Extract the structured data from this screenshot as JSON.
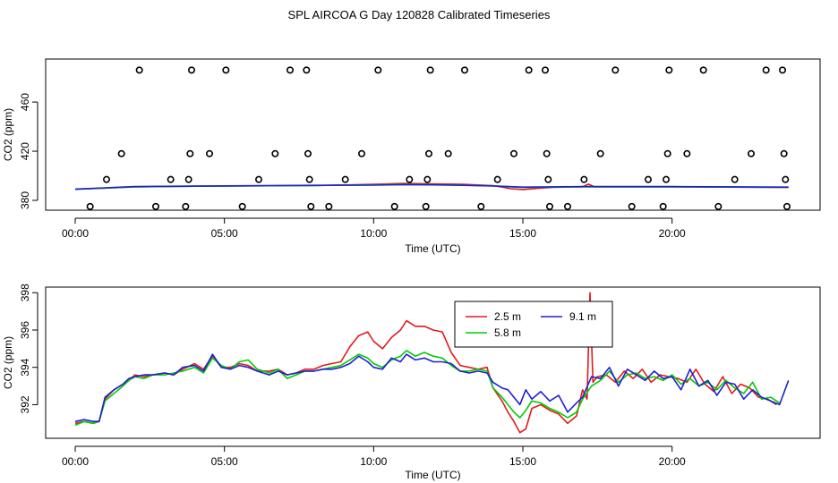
{
  "page_title": "SPL AIRCOA G  Day 120828  Calibrated Timeseries",
  "chart_data": [
    {
      "type": "scatter",
      "title": "SPL AIRCOA G  Day 120828  Calibrated Timeseries",
      "xlabel": "Time (UTC)",
      "ylabel": "CO2 (ppm)",
      "xlim": [
        -0.0,
        24.0
      ],
      "ylim": [
        372,
        495
      ],
      "xticks": [
        0,
        5,
        10,
        15,
        20
      ],
      "xtick_labels": [
        "00:00",
        "05:00",
        "10:00",
        "15:00",
        "20:00"
      ],
      "yticks": [
        380,
        420,
        460
      ],
      "ytick_labels": [
        "380",
        "420",
        "460"
      ],
      "calibration_points": [
        {
          "x": 0.5,
          "y": 375
        },
        {
          "x": 1.05,
          "y": 397
        },
        {
          "x": 1.55,
          "y": 418
        },
        {
          "x": 2.15,
          "y": 486
        },
        {
          "x": 2.7,
          "y": 375
        },
        {
          "x": 3.2,
          "y": 397
        },
        {
          "x": 3.7,
          "y": 375
        },
        {
          "x": 3.8,
          "y": 397
        },
        {
          "x": 3.85,
          "y": 418
        },
        {
          "x": 3.9,
          "y": 486
        },
        {
          "x": 4.5,
          "y": 418
        },
        {
          "x": 5.05,
          "y": 486
        },
        {
          "x": 5.6,
          "y": 375
        },
        {
          "x": 6.15,
          "y": 397
        },
        {
          "x": 6.7,
          "y": 418
        },
        {
          "x": 7.2,
          "y": 486
        },
        {
          "x": 7.75,
          "y": 486
        },
        {
          "x": 7.8,
          "y": 418
        },
        {
          "x": 7.85,
          "y": 397
        },
        {
          "x": 7.9,
          "y": 375
        },
        {
          "x": 8.5,
          "y": 375
        },
        {
          "x": 9.05,
          "y": 397
        },
        {
          "x": 9.6,
          "y": 418
        },
        {
          "x": 10.15,
          "y": 486
        },
        {
          "x": 10.7,
          "y": 375
        },
        {
          "x": 11.2,
          "y": 397
        },
        {
          "x": 11.75,
          "y": 375
        },
        {
          "x": 11.8,
          "y": 397
        },
        {
          "x": 11.85,
          "y": 418
        },
        {
          "x": 11.9,
          "y": 486
        },
        {
          "x": 12.5,
          "y": 418
        },
        {
          "x": 13.05,
          "y": 486
        },
        {
          "x": 13.6,
          "y": 375
        },
        {
          "x": 14.15,
          "y": 397
        },
        {
          "x": 14.7,
          "y": 418
        },
        {
          "x": 15.2,
          "y": 486
        },
        {
          "x": 15.75,
          "y": 486
        },
        {
          "x": 15.8,
          "y": 418
        },
        {
          "x": 15.85,
          "y": 397
        },
        {
          "x": 15.9,
          "y": 375
        },
        {
          "x": 16.5,
          "y": 375
        },
        {
          "x": 17.05,
          "y": 397
        },
        {
          "x": 17.6,
          "y": 418
        },
        {
          "x": 18.1,
          "y": 486
        },
        {
          "x": 18.65,
          "y": 375
        },
        {
          "x": 19.2,
          "y": 397
        },
        {
          "x": 19.7,
          "y": 375
        },
        {
          "x": 19.8,
          "y": 397
        },
        {
          "x": 19.85,
          "y": 418
        },
        {
          "x": 19.9,
          "y": 486
        },
        {
          "x": 20.5,
          "y": 418
        },
        {
          "x": 21.05,
          "y": 486
        },
        {
          "x": 21.55,
          "y": 375
        },
        {
          "x": 22.1,
          "y": 397
        },
        {
          "x": 22.65,
          "y": 418
        },
        {
          "x": 23.15,
          "y": 486
        },
        {
          "x": 23.7,
          "y": 486
        },
        {
          "x": 23.75,
          "y": 418
        },
        {
          "x": 23.8,
          "y": 397
        },
        {
          "x": 23.85,
          "y": 375
        }
      ],
      "series": [
        {
          "name": "2.5 m",
          "color": "#e31a1c",
          "x": [
            0,
            1,
            2,
            4,
            8,
            10,
            11,
            12,
            13,
            14,
            14.6,
            15,
            15.6,
            16,
            17,
            17.2,
            17.4,
            18,
            20,
            23.9
          ],
          "y": [
            389,
            390,
            391,
            391.5,
            392,
            393,
            393.8,
            393.5,
            393,
            392,
            389.5,
            388.8,
            390,
            390.6,
            391,
            393.2,
            391,
            391,
            391,
            390.5
          ]
        },
        {
          "name": "5.8 m",
          "color": "#00cc00",
          "x": [
            0,
            1,
            2,
            4,
            8,
            10,
            11,
            12,
            13,
            14,
            15,
            16,
            17,
            18,
            20,
            23.9
          ],
          "y": [
            389,
            390,
            391,
            391.5,
            392,
            392.6,
            393,
            392.8,
            392.4,
            391.8,
            390.5,
            390.8,
            391,
            391,
            391,
            390.6
          ]
        },
        {
          "name": "9.1 m",
          "color": "#1f1fd6",
          "x": [
            0,
            1,
            2,
            4,
            8,
            10,
            11,
            12,
            13,
            14,
            15,
            16,
            17,
            18,
            20,
            23.9
          ],
          "y": [
            389.2,
            390.2,
            391.2,
            391.6,
            392.2,
            392.4,
            392.8,
            392.6,
            392.2,
            391.7,
            390.8,
            391,
            391.2,
            391.2,
            391.2,
            390.8
          ]
        }
      ]
    },
    {
      "type": "line",
      "xlabel": "Time (UTC)",
      "ylabel": "CO2 (ppm)",
      "xlim": [
        -0.0,
        24.0
      ],
      "ylim": [
        390.2,
        398.3
      ],
      "xticks": [
        0,
        5,
        10,
        15,
        20
      ],
      "xtick_labels": [
        "00:00",
        "05:00",
        "10:00",
        "15:00",
        "20:00"
      ],
      "yticks": [
        392,
        394,
        396,
        398
      ],
      "ytick_labels": [
        "392",
        "394",
        "396",
        "398"
      ],
      "legend": {
        "position": "top-center",
        "entries": [
          "2.5 m",
          "9.1 m",
          "5.8 m"
        ]
      },
      "series": [
        {
          "name": "2.5 m",
          "color": "#e31a1c",
          "x": [
            0,
            0.3,
            0.6,
            0.8,
            1.0,
            1.3,
            1.6,
            1.8,
            2.0,
            2.3,
            2.6,
            3.0,
            3.3,
            3.6,
            4.0,
            4.3,
            4.6,
            4.9,
            5.2,
            5.5,
            5.8,
            6.1,
            6.5,
            6.8,
            7.1,
            7.4,
            7.7,
            8.0,
            8.3,
            8.6,
            8.9,
            9.2,
            9.5,
            9.8,
            10.0,
            10.3,
            10.6,
            10.9,
            11.1,
            11.4,
            11.7,
            12.0,
            12.3,
            12.6,
            12.9,
            13.2,
            13.5,
            13.8,
            14.0,
            14.3,
            14.5,
            14.7,
            14.9,
            15.1,
            15.3,
            15.6,
            15.9,
            16.2,
            16.5,
            16.8,
            17.0,
            17.15,
            17.25,
            17.35,
            17.5,
            17.8,
            18.1,
            18.4,
            18.7,
            19.0,
            19.3,
            19.6,
            19.9,
            20.2,
            20.5,
            20.8,
            21.1,
            21.4,
            21.7,
            22.0,
            22.3,
            22.6,
            22.9,
            23.2,
            23.5
          ],
          "y": [
            391.0,
            391.1,
            391.0,
            391.1,
            392.3,
            392.8,
            393.1,
            393.3,
            393.6,
            393.5,
            393.6,
            393.7,
            393.6,
            393.9,
            394.2,
            393.9,
            394.6,
            394.0,
            394.0,
            394.2,
            394.1,
            393.8,
            393.8,
            393.9,
            393.6,
            393.7,
            393.9,
            393.9,
            394.1,
            394.2,
            394.3,
            395.1,
            395.7,
            395.9,
            395.4,
            395.0,
            395.6,
            396.0,
            396.5,
            396.2,
            396.2,
            396.0,
            395.9,
            394.8,
            394.1,
            394.0,
            393.9,
            394.0,
            392.9,
            392.2,
            391.6,
            391.1,
            390.5,
            390.7,
            391.8,
            392.0,
            391.7,
            391.5,
            391.0,
            391.4,
            392.8,
            392.3,
            398.0,
            393.2,
            393.5,
            393.6,
            393.2,
            393.8,
            393.4,
            393.9,
            393.2,
            393.6,
            393.5,
            393.4,
            393.2,
            393.9,
            393.1,
            392.7,
            393.5,
            392.6,
            393.1,
            392.9,
            392.4,
            392.3,
            392.0
          ]
        },
        {
          "name": "5.8 m",
          "color": "#00cc00",
          "x": [
            0,
            0.3,
            0.6,
            0.8,
            1.0,
            1.3,
            1.6,
            1.8,
            2.0,
            2.3,
            2.6,
            3.0,
            3.3,
            3.6,
            4.0,
            4.3,
            4.6,
            4.9,
            5.2,
            5.5,
            5.8,
            6.1,
            6.5,
            6.8,
            7.1,
            7.4,
            7.7,
            8.0,
            8.3,
            8.6,
            8.9,
            9.2,
            9.5,
            9.8,
            10.0,
            10.3,
            10.6,
            10.9,
            11.1,
            11.4,
            11.7,
            12.0,
            12.3,
            12.6,
            12.9,
            13.2,
            13.5,
            13.8,
            14.0,
            14.3,
            14.5,
            14.7,
            14.9,
            15.1,
            15.3,
            15.6,
            15.9,
            16.2,
            16.5,
            16.8,
            17.0,
            17.3,
            17.6,
            17.9,
            18.2,
            18.5,
            18.8,
            19.1,
            19.4,
            19.7,
            20.0,
            20.3,
            20.6,
            20.9,
            21.2,
            21.5,
            21.8,
            22.1,
            22.4,
            22.7,
            23.0,
            23.3,
            23.6
          ],
          "y": [
            390.9,
            391.1,
            391.0,
            391.1,
            392.2,
            392.6,
            393.0,
            393.3,
            393.5,
            393.4,
            393.6,
            393.6,
            393.7,
            393.8,
            394.0,
            393.7,
            394.5,
            394.1,
            393.9,
            394.3,
            394.4,
            393.9,
            393.7,
            393.9,
            393.4,
            393.6,
            393.8,
            393.8,
            393.9,
            394.0,
            394.1,
            394.4,
            394.7,
            394.5,
            394.2,
            394.0,
            394.4,
            394.6,
            394.9,
            394.6,
            394.8,
            394.6,
            394.5,
            394.1,
            393.8,
            393.8,
            393.9,
            393.8,
            392.9,
            392.4,
            392.0,
            391.6,
            391.3,
            391.7,
            392.2,
            392.1,
            391.8,
            391.6,
            391.3,
            391.6,
            392.3,
            393.0,
            393.3,
            393.8,
            393.2,
            393.6,
            393.7,
            393.4,
            393.5,
            393.3,
            393.6,
            393.1,
            393.4,
            393.0,
            393.2,
            392.8,
            393.3,
            392.9,
            392.6,
            393.2,
            392.3,
            392.4,
            392.1
          ]
        },
        {
          "name": "9.1 m",
          "color": "#1f1fd6",
          "x": [
            0,
            0.3,
            0.6,
            0.8,
            1.0,
            1.3,
            1.6,
            1.8,
            2.0,
            2.3,
            2.6,
            3.0,
            3.3,
            3.6,
            4.0,
            4.3,
            4.6,
            4.9,
            5.2,
            5.5,
            5.8,
            6.1,
            6.5,
            6.8,
            7.1,
            7.4,
            7.7,
            8.0,
            8.3,
            8.6,
            8.9,
            9.2,
            9.5,
            9.8,
            10.0,
            10.3,
            10.6,
            10.9,
            11.1,
            11.4,
            11.7,
            12.0,
            12.3,
            12.6,
            12.9,
            13.2,
            13.5,
            13.8,
            14.0,
            14.3,
            14.5,
            14.7,
            14.9,
            15.1,
            15.3,
            15.6,
            15.9,
            16.2,
            16.5,
            16.8,
            17.0,
            17.3,
            17.6,
            17.9,
            18.2,
            18.5,
            18.8,
            19.1,
            19.4,
            19.7,
            20.0,
            20.3,
            20.6,
            20.9,
            21.2,
            21.5,
            21.8,
            22.1,
            22.4,
            22.7,
            23.0,
            23.3,
            23.6,
            23.9
          ],
          "y": [
            391.1,
            391.2,
            391.1,
            391.1,
            392.4,
            392.8,
            393.1,
            393.4,
            393.5,
            393.6,
            393.6,
            393.7,
            393.6,
            394.0,
            394.1,
            393.8,
            394.7,
            394.0,
            393.9,
            394.1,
            394.0,
            393.8,
            393.6,
            393.8,
            393.6,
            393.7,
            393.8,
            393.8,
            393.9,
            393.9,
            394.0,
            394.2,
            394.6,
            394.3,
            394.0,
            393.9,
            394.5,
            394.3,
            394.7,
            394.4,
            394.5,
            394.3,
            394.3,
            394.2,
            393.8,
            393.7,
            393.8,
            393.7,
            393.2,
            392.9,
            392.8,
            392.4,
            392.0,
            392.8,
            392.3,
            392.7,
            392.2,
            392.5,
            391.6,
            392.1,
            392.4,
            393.5,
            393.4,
            394.0,
            393.0,
            393.9,
            393.6,
            393.3,
            393.8,
            393.4,
            393.5,
            392.8,
            393.9,
            393.0,
            393.3,
            392.5,
            393.2,
            393.1,
            392.3,
            392.8,
            392.4,
            392.2,
            392.0,
            393.3
          ]
        }
      ]
    }
  ]
}
